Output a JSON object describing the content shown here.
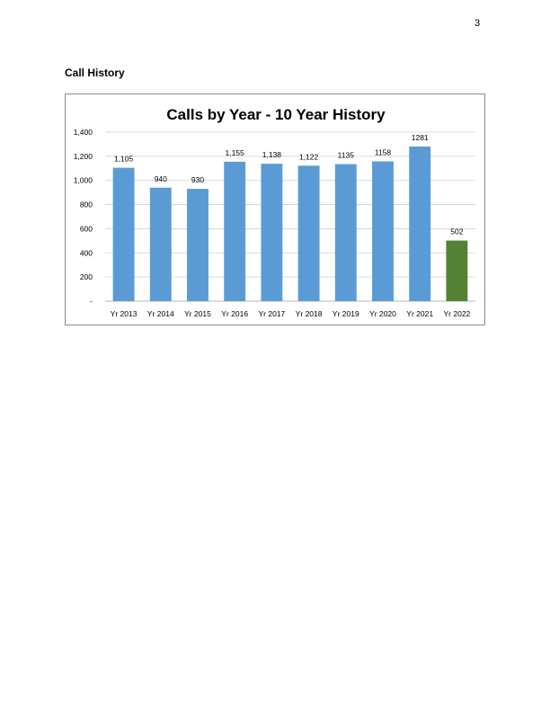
{
  "page": {
    "number": "3"
  },
  "section": {
    "heading": "Call History"
  },
  "chart_data": {
    "type": "bar",
    "title": "Calls by Year - 10 Year History",
    "xlabel": "",
    "ylabel": "",
    "categories": [
      "Yr 2013",
      "Yr 2014",
      "Yr 2015",
      "Yr 2016",
      "Yr 2017",
      "Yr 2018",
      "Yr 2019",
      "Yr 2020",
      "Yr 2021",
      "Yr 2022"
    ],
    "values": [
      1105,
      940,
      930,
      1155,
      1138,
      1122,
      1135,
      1158,
      1281,
      502
    ],
    "data_labels": [
      "1,105",
      "940",
      "930",
      "1,155",
      "1,138",
      "1,122",
      "1135",
      "1158",
      "1281",
      "502"
    ],
    "bar_colors": [
      "#5b9bd5",
      "#5b9bd5",
      "#5b9bd5",
      "#5b9bd5",
      "#5b9bd5",
      "#5b9bd5",
      "#5b9bd5",
      "#5b9bd5",
      "#5b9bd5",
      "#548235"
    ],
    "ylim": [
      0,
      1400
    ],
    "yticks": [
      0,
      200,
      400,
      600,
      800,
      1000,
      1200,
      1400
    ],
    "ytick_labels": [
      "-",
      "200",
      "400",
      "600",
      "800",
      "1,000",
      "1,200",
      "1,400"
    ],
    "grid": true,
    "legend": "none"
  }
}
